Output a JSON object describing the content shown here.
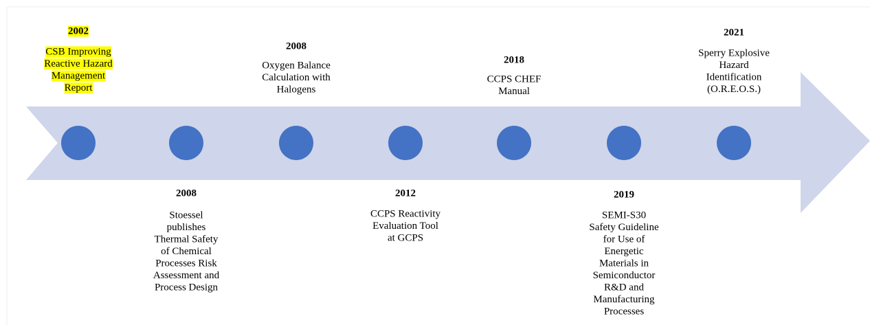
{
  "events": [
    {
      "year": "2002",
      "lines": [
        "CSB Improving",
        "Reactive Hazard",
        "Management",
        "Report"
      ]
    },
    {
      "year": "2008",
      "lines": [
        "Stoessel",
        "publishes",
        "Thermal Safety",
        "of Chemical",
        "Processes Risk",
        "Assessment and",
        "Process Design"
      ]
    },
    {
      "year": "2008",
      "lines": [
        "Oxygen Balance",
        "Calculation with",
        "Halogens"
      ]
    },
    {
      "year": "2012",
      "lines": [
        "CCPS Reactivity",
        "Evaluation Tool",
        "at GCPS"
      ]
    },
    {
      "year": "2018",
      "lines": [
        "CCPS CHEF",
        "Manual"
      ]
    },
    {
      "year": "2019",
      "lines": [
        "SEMI-S30",
        "Safety Guideline",
        "for Use of",
        "Energetic",
        "Materials in",
        "Semiconductor",
        "R&D and",
        "Manufacturing",
        "Processes"
      ]
    },
    {
      "year": "2021",
      "lines": [
        "Sperry Explosive",
        "Hazard",
        "Identification",
        "(O.R.E.O.S.)"
      ]
    }
  ]
}
